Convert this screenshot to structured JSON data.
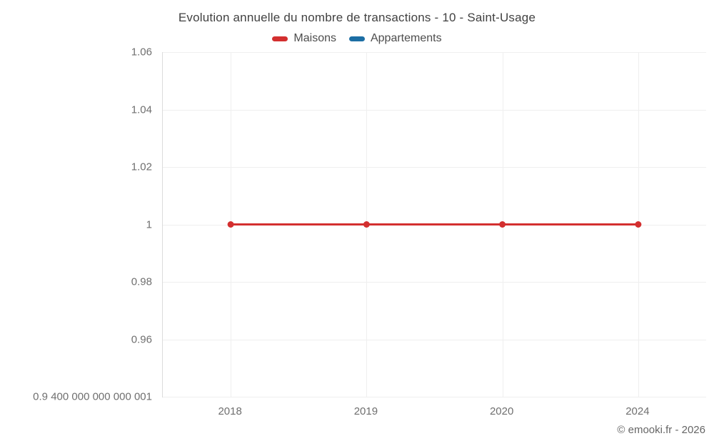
{
  "chart_data": {
    "type": "line",
    "title": "Evolution annuelle du nombre de transactions - 10 - Saint-Usage",
    "categories": [
      "2018",
      "2019",
      "2020",
      "2024"
    ],
    "series": [
      {
        "name": "Maisons",
        "color": "#d32f2f",
        "values": [
          1,
          1,
          1,
          1
        ]
      },
      {
        "name": "Appartements",
        "color": "#1c6ea4",
        "values": []
      }
    ],
    "y_axis": {
      "min": 0.94,
      "max": 1.06,
      "ticks": [
        {
          "label": "1.06",
          "value": 1.06
        },
        {
          "label": "1.04",
          "value": 1.04
        },
        {
          "label": "1.02",
          "value": 1.02
        },
        {
          "label": "1",
          "value": 1.0
        },
        {
          "label": "0.98",
          "value": 0.98
        },
        {
          "label": "0.96",
          "value": 0.96
        },
        {
          "label": "0.9 400 000 000 000 001",
          "value": 0.94
        }
      ]
    },
    "xlabel": "",
    "ylabel": "",
    "grid": true,
    "legend_position": "top",
    "marker_radius": 4.5,
    "line_width": 3
  },
  "footer": {
    "credit": "© emooki.fr - 2026"
  },
  "colors": {
    "grid": "#efefef",
    "axis": "#dcdcdc",
    "tick_text": "#6f6f6f",
    "title_text": "#414141",
    "credit_text": "#666666"
  }
}
